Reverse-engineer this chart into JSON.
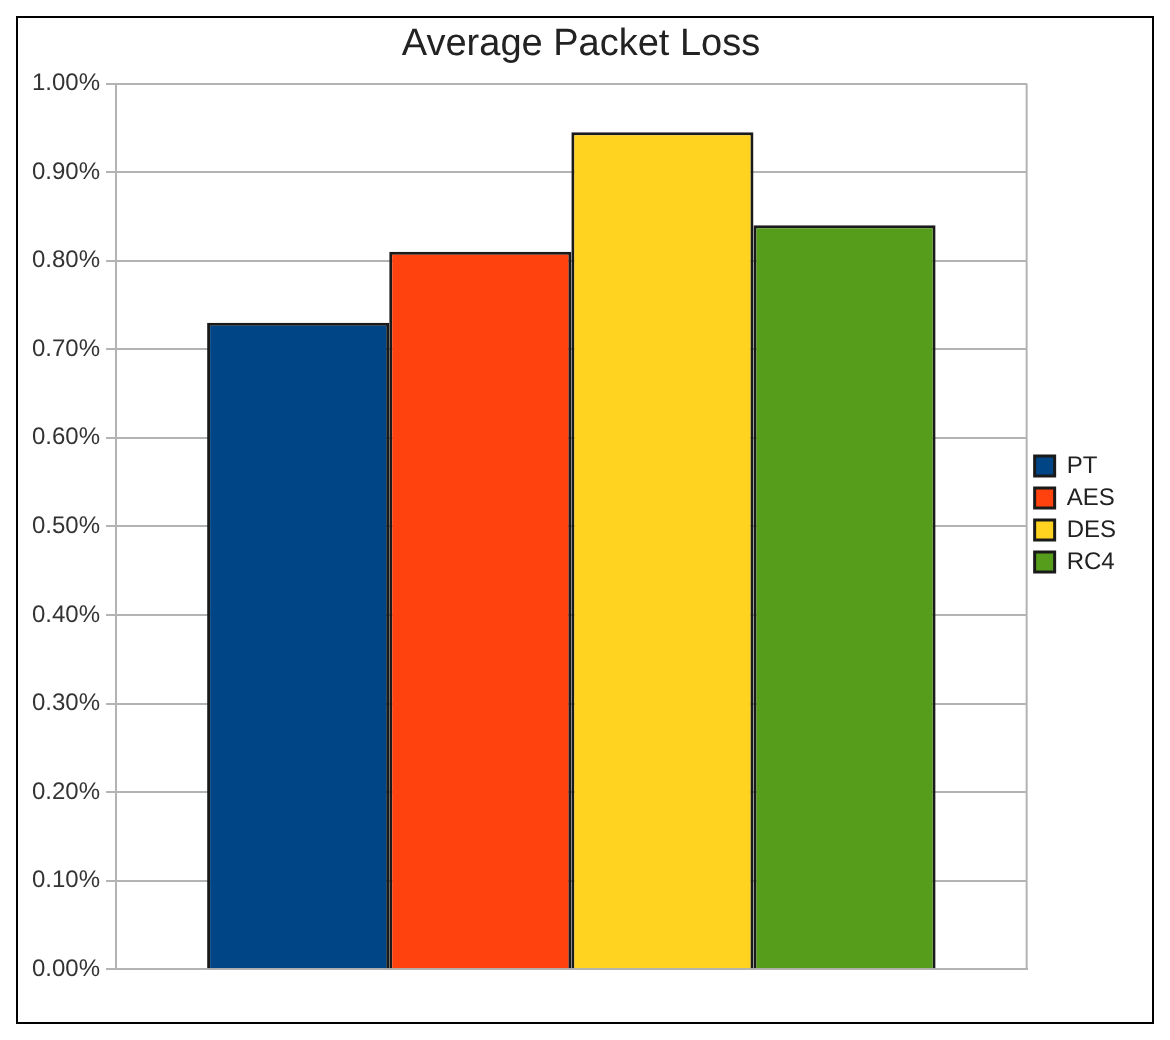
{
  "chart_data": {
    "type": "bar",
    "title": "Average Packet Loss",
    "categories": [
      null
    ],
    "series": [
      {
        "name": "PT",
        "color": "#004586",
        "values": [
          0.73
        ]
      },
      {
        "name": "AES",
        "color": "#ff420e",
        "values": [
          0.81
        ]
      },
      {
        "name": "DES",
        "color": "#ffd320",
        "values": [
          0.945
        ]
      },
      {
        "name": "RC4",
        "color": "#579d1c",
        "values": [
          0.84
        ]
      }
    ],
    "ylim": [
      0,
      1
    ],
    "yticks": [
      {
        "value": 0,
        "label": "0.00%"
      },
      {
        "value": 0.1,
        "label": "0.10%"
      },
      {
        "value": 0.2,
        "label": "0.20%"
      },
      {
        "value": 0.3,
        "label": "0.30%"
      },
      {
        "value": 0.4,
        "label": "0.40%"
      },
      {
        "value": 0.5,
        "label": "0.50%"
      },
      {
        "value": 0.6,
        "label": "0.60%"
      },
      {
        "value": 0.7,
        "label": "0.70%"
      },
      {
        "value": 0.8,
        "label": "0.80%"
      },
      {
        "value": 0.9,
        "label": "0.90%"
      },
      {
        "value": 1,
        "label": "1.00%"
      }
    ],
    "grid": "y",
    "legend": "right"
  }
}
